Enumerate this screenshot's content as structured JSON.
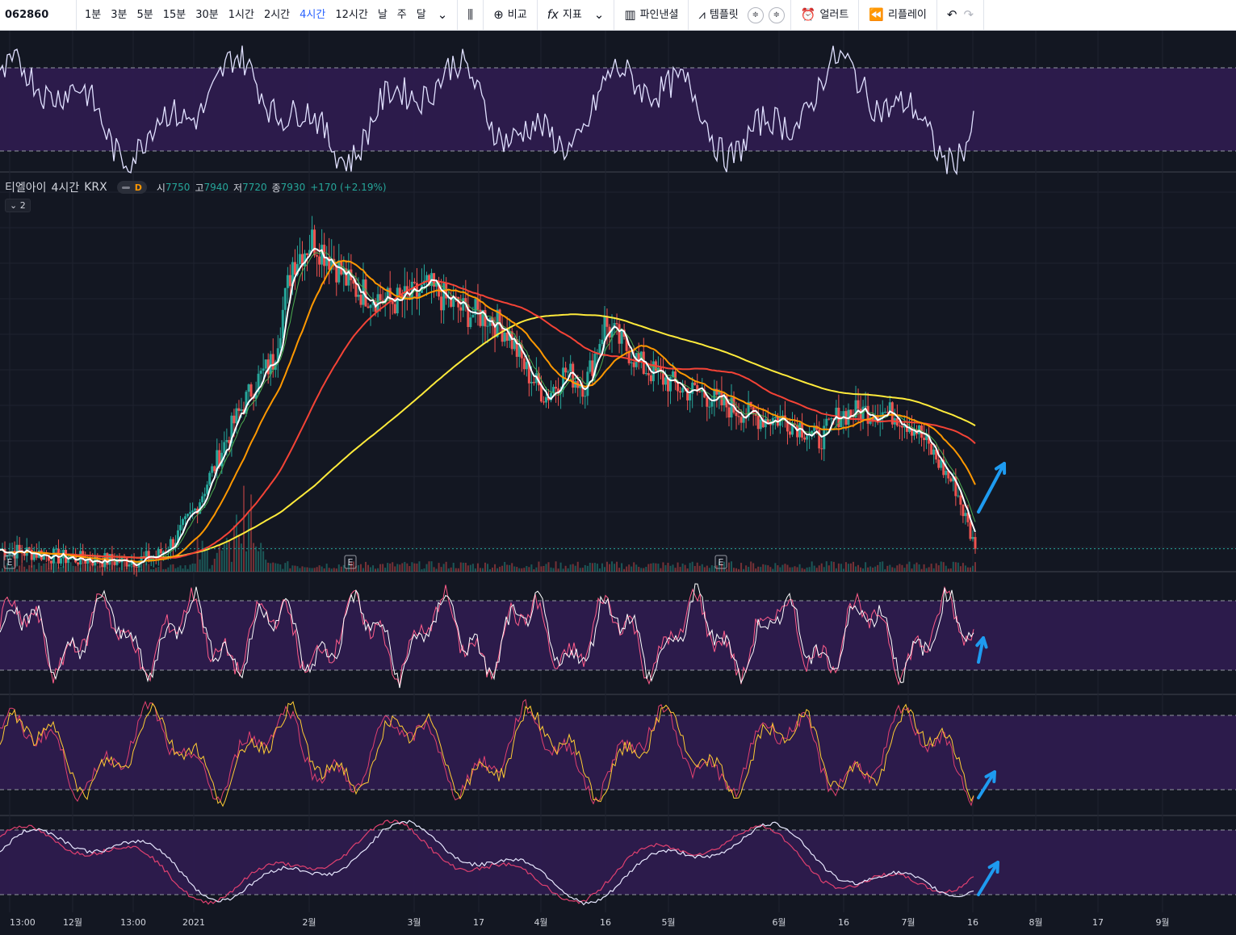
{
  "toolbar": {
    "symbol": "062860",
    "timeframes": [
      "1분",
      "3분",
      "5분",
      "15분",
      "30분",
      "1시간",
      "2시간",
      "4시간",
      "12시간",
      "날",
      "주",
      "달"
    ],
    "active_timeframe": "4시간",
    "compare_label": "비교",
    "indicators_label": "지표",
    "pinescript_label": "파인낸셜",
    "templates_label": "템플릿",
    "alert_label": "얼러트",
    "replay_label": "리플레이"
  },
  "legend": {
    "name": "티엘아이",
    "interval": "4시간",
    "exchange": "KRX",
    "badge": "D",
    "open_label": "시",
    "open": "7750",
    "high_label": "고",
    "high": "7940",
    "low_label": "저",
    "low": "7720",
    "close_label": "종",
    "close": "7930",
    "change": "+170 (+2.19%)",
    "collapse_label": "2"
  },
  "earnings_marker": "E",
  "x_axis": [
    "13:00",
    "12월",
    "13:00",
    "2021",
    "2월",
    "3월",
    "17",
    "4월",
    "16",
    "5월",
    "6월",
    "16",
    "7월",
    "16",
    "8월",
    "17",
    "9월"
  ],
  "colors": {
    "background": "#131722",
    "band": "#2d1b4e",
    "up": "#26a69a",
    "down": "#ef5350",
    "ma_white": "#ffffff",
    "ma_orange": "#ff9800",
    "ma_red": "#f44336",
    "ma_yellow": "#ffeb3b",
    "ma_green": "#4caf50",
    "arrow": "#1e9bf0"
  },
  "chart_data": {
    "type": "line",
    "series": [
      {
        "name": "",
        "values": [
          7900,
          7850,
          7800,
          7700,
          7650,
          7620,
          7600,
          7620,
          7700,
          8200,
          9000,
          10200,
          11400,
          12400,
          13100,
          15800,
          16400,
          15900,
          15100,
          14900,
          14700,
          14800,
          15100,
          14700,
          14400,
          14300,
          13900,
          12800,
          12100,
          12800,
          12400,
          14100,
          13500,
          12900,
          12600,
          12300,
          12200,
          11900,
          11700,
          11500,
          11500,
          11300,
          10900,
          11600,
          11700,
          11700,
          11600,
          11200,
          10400,
          9600,
          7930
        ]
      }
    ]
  }
}
